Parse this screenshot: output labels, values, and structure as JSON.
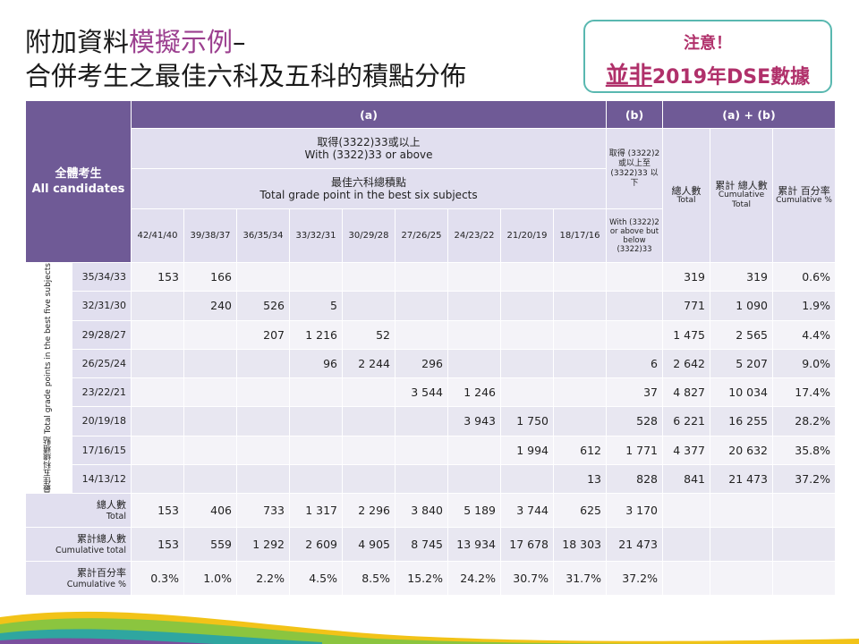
{
  "title": {
    "line1_prefix": "附加資料",
    "line1_highlight": "模擬示例",
    "line1_suffix": "–",
    "line2": "合併考生之最佳六科及五科的積點分佈"
  },
  "note": {
    "line1": "注意！",
    "line2_underlined": "並非",
    "line2_rest": "2019年DSE數據"
  },
  "header": {
    "all_candidates_zh": "全體考生",
    "all_candidates_en": "All candidates",
    "group_a": "(a)",
    "group_b": "(b)",
    "group_ab": "(a) + (b)",
    "cond_a_zh": "取得(3322)33或以上",
    "cond_a_en": "With (3322)33  or above",
    "best6_zh": "最佳六科總積點",
    "best6_en": "Total grade point in the best six subjects",
    "cond_b_zh": "取得 (3322)2 或以上至 (3322)33 以下",
    "cond_b_en": "With (3322)2 or above but below (3322)33",
    "total_zh": "總人數",
    "total_en": "Total",
    "cum_total_zh": "累計 總人數",
    "cum_total_en": "Cumulative Total",
    "cum_pct_zh": "累計 百分率",
    "cum_pct_en": "Cumulative %",
    "best5_label": "最佳五科總積點 Total grade points in the best five subjects",
    "columns": [
      "42/41/40",
      "39/38/37",
      "36/35/34",
      "33/32/31",
      "30/29/28",
      "27/26/25",
      "24/23/22",
      "21/20/19",
      "18/17/16"
    ]
  },
  "rows": [
    {
      "label": "35/34/33",
      "cells": [
        "153",
        "166",
        "",
        "",
        "",
        "",
        "",
        "",
        "",
        ""
      ],
      "total": "319",
      "cum": "319",
      "pct": "0.6%"
    },
    {
      "label": "32/31/30",
      "cells": [
        "",
        "240",
        "526",
        "5",
        "",
        "",
        "",
        "",
        "",
        ""
      ],
      "total": "771",
      "cum": "1 090",
      "pct": "1.9%"
    },
    {
      "label": "29/28/27",
      "cells": [
        "",
        "",
        "207",
        "1 216",
        "52",
        "",
        "",
        "",
        "",
        ""
      ],
      "total": "1 475",
      "cum": "2 565",
      "pct": "4.4%"
    },
    {
      "label": "26/25/24",
      "cells": [
        "",
        "",
        "",
        "96",
        "2 244",
        "296",
        "",
        "",
        "",
        "6"
      ],
      "total": "2 642",
      "cum": "5 207",
      "pct": "9.0%"
    },
    {
      "label": "23/22/21",
      "cells": [
        "",
        "",
        "",
        "",
        "",
        "3 544",
        "1 246",
        "",
        "",
        "37"
      ],
      "total": "4 827",
      "cum": "10 034",
      "pct": "17.4%"
    },
    {
      "label": "20/19/18",
      "cells": [
        "",
        "",
        "",
        "",
        "",
        "",
        "3 943",
        "1 750",
        "",
        "528"
      ],
      "total": "6 221",
      "cum": "16 255",
      "pct": "28.2%"
    },
    {
      "label": "17/16/15",
      "cells": [
        "",
        "",
        "",
        "",
        "",
        "",
        "",
        "1 994",
        "612",
        "1 771"
      ],
      "total": "4 377",
      "cum": "20 632",
      "pct": "35.8%"
    },
    {
      "label": "14/13/12",
      "cells": [
        "",
        "",
        "",
        "",
        "",
        "",
        "",
        "",
        "13",
        "828"
      ],
      "total": "841",
      "cum": "21 473",
      "pct": "37.2%"
    }
  ],
  "footer": [
    {
      "label_zh": "總人數",
      "label_en": "Total",
      "cells": [
        "153",
        "406",
        "733",
        "1 317",
        "2 296",
        "3 840",
        "5 189",
        "3 744",
        "625",
        "3 170"
      ]
    },
    {
      "label_zh": "累計總人數",
      "label_en": "Cumulative total",
      "cells": [
        "153",
        "559",
        "1 292",
        "2 609",
        "4 905",
        "8 745",
        "13 934",
        "17 678",
        "18 303",
        "21 473"
      ]
    },
    {
      "label_zh": "累計百分率",
      "label_en": "Cumulative %",
      "cells": [
        "0.3%",
        "1.0%",
        "2.2%",
        "4.5%",
        "8.5%",
        "15.2%",
        "24.2%",
        "30.7%",
        "31.7%",
        "37.2%"
      ]
    }
  ],
  "colors": {
    "header_purple": "#6f5a96",
    "light_lavender": "#e1dfef",
    "highlight": "#9b3f8f",
    "note_border": "#59b8b0"
  }
}
